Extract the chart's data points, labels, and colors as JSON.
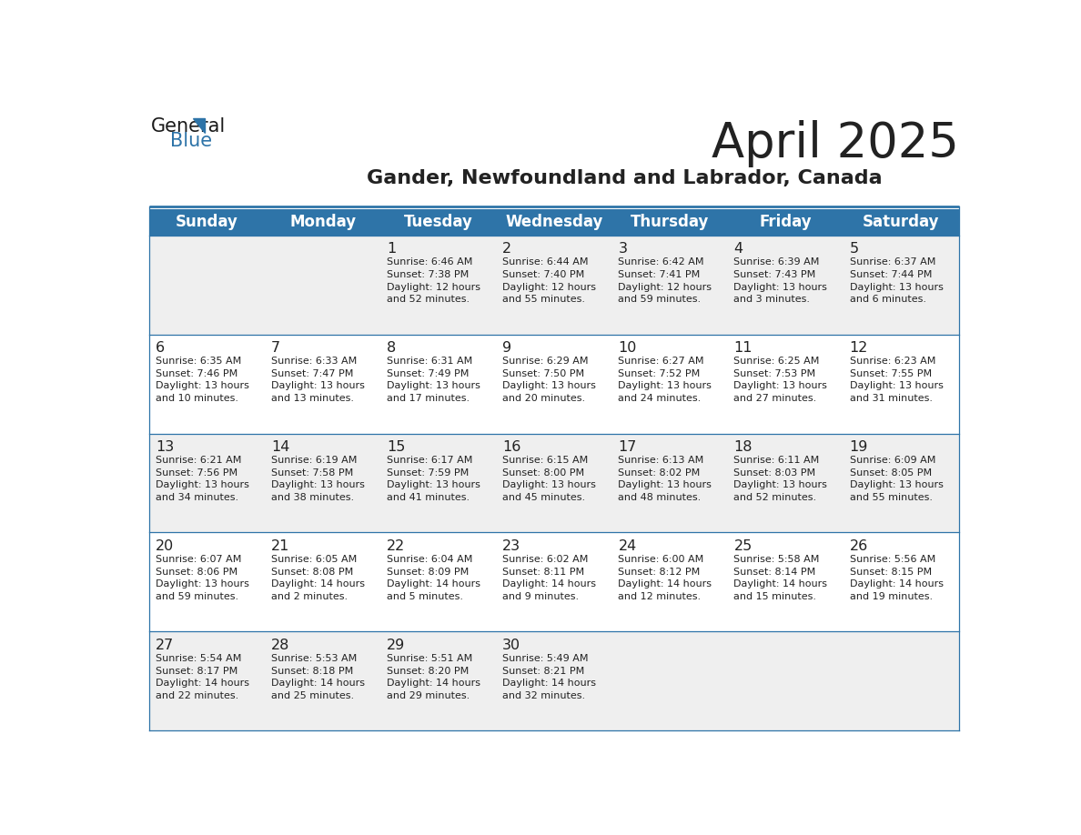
{
  "title": "April 2025",
  "subtitle": "Gander, Newfoundland and Labrador, Canada",
  "days_of_week": [
    "Sunday",
    "Monday",
    "Tuesday",
    "Wednesday",
    "Thursday",
    "Friday",
    "Saturday"
  ],
  "header_bg": "#2E74A8",
  "header_text": "#FFFFFF",
  "row_bg_odd": "#EFEFEF",
  "row_bg_even": "#FFFFFF",
  "cell_text": "#222222",
  "grid_line": "#2E74A8",
  "title_color": "#222222",
  "subtitle_color": "#222222",
  "logo_general_color": "#1a1a1a",
  "logo_blue_color": "#2E74A8",
  "weeks": [
    [
      {
        "day": null,
        "info": null
      },
      {
        "day": null,
        "info": null
      },
      {
        "day": 1,
        "info": "Sunrise: 6:46 AM\nSunset: 7:38 PM\nDaylight: 12 hours\nand 52 minutes."
      },
      {
        "day": 2,
        "info": "Sunrise: 6:44 AM\nSunset: 7:40 PM\nDaylight: 12 hours\nand 55 minutes."
      },
      {
        "day": 3,
        "info": "Sunrise: 6:42 AM\nSunset: 7:41 PM\nDaylight: 12 hours\nand 59 minutes."
      },
      {
        "day": 4,
        "info": "Sunrise: 6:39 AM\nSunset: 7:43 PM\nDaylight: 13 hours\nand 3 minutes."
      },
      {
        "day": 5,
        "info": "Sunrise: 6:37 AM\nSunset: 7:44 PM\nDaylight: 13 hours\nand 6 minutes."
      }
    ],
    [
      {
        "day": 6,
        "info": "Sunrise: 6:35 AM\nSunset: 7:46 PM\nDaylight: 13 hours\nand 10 minutes."
      },
      {
        "day": 7,
        "info": "Sunrise: 6:33 AM\nSunset: 7:47 PM\nDaylight: 13 hours\nand 13 minutes."
      },
      {
        "day": 8,
        "info": "Sunrise: 6:31 AM\nSunset: 7:49 PM\nDaylight: 13 hours\nand 17 minutes."
      },
      {
        "day": 9,
        "info": "Sunrise: 6:29 AM\nSunset: 7:50 PM\nDaylight: 13 hours\nand 20 minutes."
      },
      {
        "day": 10,
        "info": "Sunrise: 6:27 AM\nSunset: 7:52 PM\nDaylight: 13 hours\nand 24 minutes."
      },
      {
        "day": 11,
        "info": "Sunrise: 6:25 AM\nSunset: 7:53 PM\nDaylight: 13 hours\nand 27 minutes."
      },
      {
        "day": 12,
        "info": "Sunrise: 6:23 AM\nSunset: 7:55 PM\nDaylight: 13 hours\nand 31 minutes."
      }
    ],
    [
      {
        "day": 13,
        "info": "Sunrise: 6:21 AM\nSunset: 7:56 PM\nDaylight: 13 hours\nand 34 minutes."
      },
      {
        "day": 14,
        "info": "Sunrise: 6:19 AM\nSunset: 7:58 PM\nDaylight: 13 hours\nand 38 minutes."
      },
      {
        "day": 15,
        "info": "Sunrise: 6:17 AM\nSunset: 7:59 PM\nDaylight: 13 hours\nand 41 minutes."
      },
      {
        "day": 16,
        "info": "Sunrise: 6:15 AM\nSunset: 8:00 PM\nDaylight: 13 hours\nand 45 minutes."
      },
      {
        "day": 17,
        "info": "Sunrise: 6:13 AM\nSunset: 8:02 PM\nDaylight: 13 hours\nand 48 minutes."
      },
      {
        "day": 18,
        "info": "Sunrise: 6:11 AM\nSunset: 8:03 PM\nDaylight: 13 hours\nand 52 minutes."
      },
      {
        "day": 19,
        "info": "Sunrise: 6:09 AM\nSunset: 8:05 PM\nDaylight: 13 hours\nand 55 minutes."
      }
    ],
    [
      {
        "day": 20,
        "info": "Sunrise: 6:07 AM\nSunset: 8:06 PM\nDaylight: 13 hours\nand 59 minutes."
      },
      {
        "day": 21,
        "info": "Sunrise: 6:05 AM\nSunset: 8:08 PM\nDaylight: 14 hours\nand 2 minutes."
      },
      {
        "day": 22,
        "info": "Sunrise: 6:04 AM\nSunset: 8:09 PM\nDaylight: 14 hours\nand 5 minutes."
      },
      {
        "day": 23,
        "info": "Sunrise: 6:02 AM\nSunset: 8:11 PM\nDaylight: 14 hours\nand 9 minutes."
      },
      {
        "day": 24,
        "info": "Sunrise: 6:00 AM\nSunset: 8:12 PM\nDaylight: 14 hours\nand 12 minutes."
      },
      {
        "day": 25,
        "info": "Sunrise: 5:58 AM\nSunset: 8:14 PM\nDaylight: 14 hours\nand 15 minutes."
      },
      {
        "day": 26,
        "info": "Sunrise: 5:56 AM\nSunset: 8:15 PM\nDaylight: 14 hours\nand 19 minutes."
      }
    ],
    [
      {
        "day": 27,
        "info": "Sunrise: 5:54 AM\nSunset: 8:17 PM\nDaylight: 14 hours\nand 22 minutes."
      },
      {
        "day": 28,
        "info": "Sunrise: 5:53 AM\nSunset: 8:18 PM\nDaylight: 14 hours\nand 25 minutes."
      },
      {
        "day": 29,
        "info": "Sunrise: 5:51 AM\nSunset: 8:20 PM\nDaylight: 14 hours\nand 29 minutes."
      },
      {
        "day": 30,
        "info": "Sunrise: 5:49 AM\nSunset: 8:21 PM\nDaylight: 14 hours\nand 32 minutes."
      },
      {
        "day": null,
        "info": null
      },
      {
        "day": null,
        "info": null
      },
      {
        "day": null,
        "info": null
      }
    ]
  ]
}
